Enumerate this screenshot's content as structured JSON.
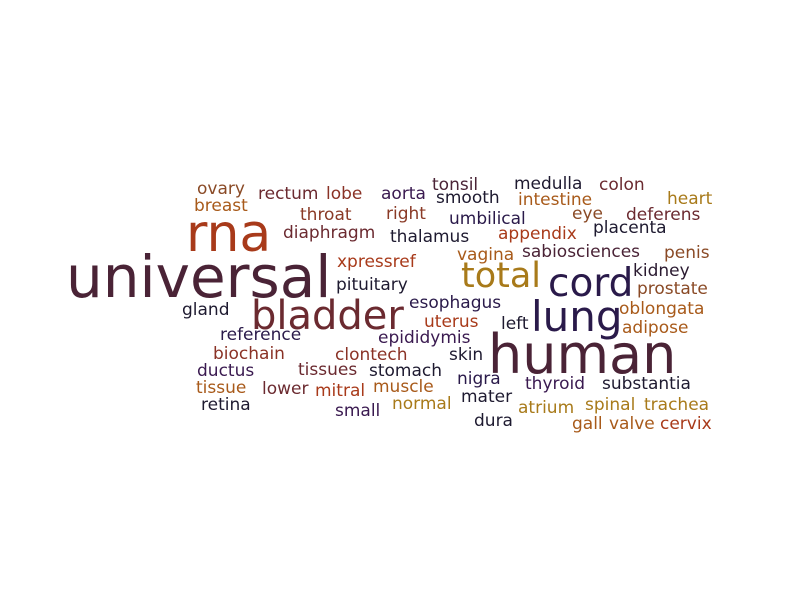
{
  "word_cloud": {
    "words": [
      {
        "text": "universal",
        "color": "#4a2336"
      },
      {
        "text": "rna",
        "color": "#a83a1a"
      },
      {
        "text": "human",
        "color": "#4a2336"
      },
      {
        "text": "bladder",
        "color": "#6b2a30"
      },
      {
        "text": "total",
        "color": "#a87a1a"
      },
      {
        "text": "cord",
        "color": "#2a1a4a"
      },
      {
        "text": "lung",
        "color": "#2a1a4a"
      },
      {
        "text": "ovary",
        "color": "#8a4a26"
      },
      {
        "text": "rectum",
        "color": "#6b2a30"
      },
      {
        "text": "lobe",
        "color": "#8a3226"
      },
      {
        "text": "aorta",
        "color": "#3a1a50"
      },
      {
        "text": "tonsil",
        "color": "#4a2336"
      },
      {
        "text": "medulla",
        "color": "#1e1a30"
      },
      {
        "text": "colon",
        "color": "#6b2a30"
      },
      {
        "text": "breast",
        "color": "#a85a1a"
      },
      {
        "text": "smooth",
        "color": "#1e1a30"
      },
      {
        "text": "intestine",
        "color": "#a85a1a"
      },
      {
        "text": "heart",
        "color": "#a87a1a"
      },
      {
        "text": "throat",
        "color": "#8a3a26"
      },
      {
        "text": "right",
        "color": "#8a3a26"
      },
      {
        "text": "umbilical",
        "color": "#2a1a4a"
      },
      {
        "text": "eye",
        "color": "#8a4a26"
      },
      {
        "text": "deferens",
        "color": "#6b2a30"
      },
      {
        "text": "diaphragm",
        "color": "#6b2a30"
      },
      {
        "text": "thalamus",
        "color": "#1e1a30"
      },
      {
        "text": "appendix",
        "color": "#a83a1a"
      },
      {
        "text": "placenta",
        "color": "#1e1a30"
      },
      {
        "text": "xpressref",
        "color": "#a83a1a"
      },
      {
        "text": "vagina",
        "color": "#a85a1a"
      },
      {
        "text": "sabiosciences",
        "color": "#4a2336"
      },
      {
        "text": "penis",
        "color": "#8a4a26"
      },
      {
        "text": "kidney",
        "color": "#2a1a30"
      },
      {
        "text": "pituitary",
        "color": "#1e1a30"
      },
      {
        "text": "prostate",
        "color": "#8a4a26"
      },
      {
        "text": "gland",
        "color": "#1e1a30"
      },
      {
        "text": "esophagus",
        "color": "#2a1a4a"
      },
      {
        "text": "oblongata",
        "color": "#a85a1a"
      },
      {
        "text": "uterus",
        "color": "#a83a1a"
      },
      {
        "text": "left",
        "color": "#1e1a30"
      },
      {
        "text": "adipose",
        "color": "#a85a1a"
      },
      {
        "text": "reference",
        "color": "#2a1a4a"
      },
      {
        "text": "epididymis",
        "color": "#3a1a50"
      },
      {
        "text": "biochain",
        "color": "#8a3226"
      },
      {
        "text": "clontech",
        "color": "#8a3226"
      },
      {
        "text": "skin",
        "color": "#1e1a30"
      },
      {
        "text": "ductus",
        "color": "#3a1a50"
      },
      {
        "text": "tissues",
        "color": "#6b2a30"
      },
      {
        "text": "stomach",
        "color": "#1e1a30"
      },
      {
        "text": "nigra",
        "color": "#2a1a4a"
      },
      {
        "text": "thyroid",
        "color": "#3a1a50"
      },
      {
        "text": "substantia",
        "color": "#1e1a30"
      },
      {
        "text": "tissue",
        "color": "#a85a1a"
      },
      {
        "text": "lower",
        "color": "#6b2a30"
      },
      {
        "text": "mitral",
        "color": "#a83a1a"
      },
      {
        "text": "muscle",
        "color": "#a85a1a"
      },
      {
        "text": "retina",
        "color": "#1e1a30"
      },
      {
        "text": "small",
        "color": "#3a1a50"
      },
      {
        "text": "normal",
        "color": "#a87a1a"
      },
      {
        "text": "mater",
        "color": "#1e1a30"
      },
      {
        "text": "atrium",
        "color": "#a87a1a"
      },
      {
        "text": "spinal",
        "color": "#a87a1a"
      },
      {
        "text": "trachea",
        "color": "#a87a1a"
      },
      {
        "text": "dura",
        "color": "#1e1a30"
      },
      {
        "text": "gall",
        "color": "#a85a1a"
      },
      {
        "text": "valve",
        "color": "#a85a1a"
      },
      {
        "text": "cervix",
        "color": "#a83a1a"
      }
    ]
  }
}
